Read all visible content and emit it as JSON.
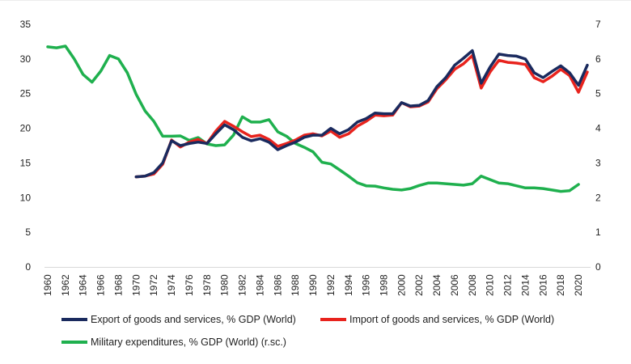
{
  "chart_data": {
    "type": "line",
    "title": "",
    "xlabel": "",
    "ylabel_left": "",
    "ylabel_right": "",
    "y_left_lim": [
      0,
      35
    ],
    "y_left_ticks": [
      0,
      5,
      10,
      15,
      20,
      25,
      30,
      35
    ],
    "y_right_lim": [
      0,
      7
    ],
    "y_right_ticks": [
      0,
      1,
      2,
      3,
      4,
      5,
      6,
      7
    ],
    "x_range": [
      1960,
      2021
    ],
    "x_tick_labels": [
      "1960",
      "1962",
      "1964",
      "1966",
      "1968",
      "1970",
      "1972",
      "1974",
      "1976",
      "1978",
      "1980",
      "1982",
      "1984",
      "1986",
      "1988",
      "1990",
      "1992",
      "1994",
      "1996",
      "1998",
      "2000",
      "2002",
      "2004",
      "2006",
      "2008",
      "2010",
      "2012",
      "2014",
      "2016",
      "2018",
      "2020"
    ],
    "grid": false,
    "legend_position": "bottom",
    "series": [
      {
        "name": "Export of goods and services, % GDP (World)",
        "color": "#1a2a5e",
        "axis": "left",
        "x": [
          1970,
          1971,
          1972,
          1973,
          1974,
          1975,
          1976,
          1977,
          1978,
          1979,
          1980,
          1981,
          1982,
          1983,
          1984,
          1985,
          1986,
          1987,
          1988,
          1989,
          1990,
          1991,
          1992,
          1993,
          1994,
          1995,
          1996,
          1997,
          1998,
          1999,
          2000,
          2001,
          2002,
          2003,
          2004,
          2005,
          2006,
          2007,
          2008,
          2009,
          2010,
          2011,
          2012,
          2013,
          2014,
          2015,
          2016,
          2017,
          2018,
          2019,
          2020,
          2021
        ],
        "values": [
          13.0,
          13.1,
          13.6,
          15.0,
          18.2,
          17.5,
          17.8,
          18.0,
          17.8,
          19.2,
          20.5,
          19.8,
          18.7,
          18.2,
          18.5,
          18.0,
          16.9,
          17.5,
          18.0,
          18.7,
          19.0,
          19.0,
          20.0,
          19.2,
          19.8,
          20.9,
          21.4,
          22.2,
          22.1,
          22.1,
          23.7,
          23.2,
          23.3,
          24.0,
          26.0,
          27.3,
          29.1,
          30.1,
          31.2,
          26.5,
          28.8,
          30.7,
          30.5,
          30.4,
          30.0,
          28.0,
          27.3,
          28.2,
          29.0,
          28.0,
          26.2,
          29.1
        ]
      },
      {
        "name": "Import of goods and services, % GDP (World)",
        "color": "#e8231d",
        "axis": "left",
        "x": [
          1970,
          1971,
          1972,
          1973,
          1974,
          1975,
          1976,
          1977,
          1978,
          1979,
          1980,
          1981,
          1982,
          1983,
          1984,
          1985,
          1986,
          1987,
          1988,
          1989,
          1990,
          1991,
          1992,
          1993,
          1994,
          1995,
          1996,
          1997,
          1998,
          1999,
          2000,
          2001,
          2002,
          2003,
          2004,
          2005,
          2006,
          2007,
          2008,
          2009,
          2010,
          2011,
          2012,
          2013,
          2014,
          2015,
          2016,
          2017,
          2018,
          2019,
          2020,
          2021
        ],
        "values": [
          13.0,
          13.1,
          13.4,
          14.8,
          18.3,
          17.3,
          18.0,
          18.4,
          17.8,
          19.6,
          21.0,
          20.3,
          19.5,
          18.8,
          19.0,
          18.4,
          17.4,
          17.8,
          18.3,
          19.0,
          19.2,
          18.9,
          19.6,
          18.7,
          19.2,
          20.3,
          21.0,
          21.9,
          21.8,
          21.9,
          23.7,
          23.1,
          23.2,
          23.8,
          25.7,
          27.0,
          28.5,
          29.3,
          30.5,
          25.8,
          28.1,
          29.8,
          29.5,
          29.4,
          29.2,
          27.3,
          26.7,
          27.5,
          28.5,
          27.6,
          25.2,
          28.1
        ]
      },
      {
        "name": "Military expenditures, % GDP (World) (r.sc.)",
        "color": "#1fb04e",
        "axis": "right",
        "x": [
          1960,
          1961,
          1962,
          1963,
          1964,
          1965,
          1966,
          1967,
          1968,
          1969,
          1970,
          1971,
          1972,
          1973,
          1974,
          1975,
          1976,
          1977,
          1978,
          1979,
          1980,
          1981,
          1982,
          1983,
          1984,
          1985,
          1986,
          1987,
          1988,
          1989,
          1990,
          1991,
          1992,
          1993,
          1994,
          1995,
          1996,
          1997,
          1998,
          1999,
          2000,
          2001,
          2002,
          2003,
          2004,
          2005,
          2006,
          2007,
          2008,
          2009,
          2010,
          2011,
          2012,
          2013,
          2014,
          2015,
          2016,
          2017,
          2018,
          2019,
          2020
        ],
        "values": [
          6.35,
          6.32,
          6.37,
          6.0,
          5.55,
          5.33,
          5.65,
          6.1,
          6.0,
          5.6,
          4.98,
          4.5,
          4.2,
          3.77,
          3.77,
          3.78,
          3.65,
          3.73,
          3.55,
          3.5,
          3.52,
          3.8,
          4.33,
          4.18,
          4.18,
          4.25,
          3.9,
          3.77,
          3.56,
          3.45,
          3.32,
          3.02,
          2.97,
          2.8,
          2.62,
          2.43,
          2.34,
          2.33,
          2.28,
          2.24,
          2.22,
          2.26,
          2.35,
          2.42,
          2.42,
          2.4,
          2.38,
          2.36,
          2.4,
          2.62,
          2.52,
          2.42,
          2.4,
          2.34,
          2.28,
          2.28,
          2.26,
          2.22,
          2.18,
          2.2,
          2.38
        ]
      }
    ]
  }
}
